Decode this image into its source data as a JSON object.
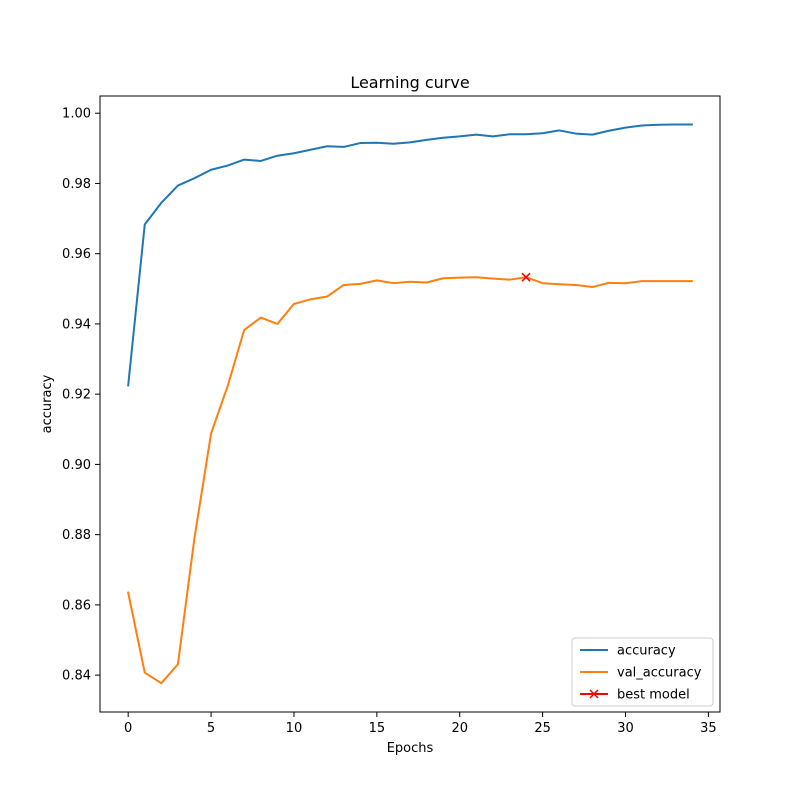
{
  "chart_data": {
    "type": "line",
    "title": "Learning curve",
    "xlabel": "Epochs",
    "ylabel": "accuracy",
    "xlim": [
      -1.7,
      35.7
    ],
    "ylim": [
      0.8295,
      1.0049
    ],
    "xticks": [
      0,
      5,
      10,
      15,
      20,
      25,
      30,
      35
    ],
    "yticks": [
      0.84,
      0.86,
      0.88,
      0.9,
      0.92,
      0.94,
      0.96,
      0.98,
      1.0
    ],
    "ytick_labels": [
      "0.84",
      "0.86",
      "0.88",
      "0.90",
      "0.92",
      "0.94",
      "0.96",
      "0.98",
      "1.00"
    ],
    "grid": false,
    "legend_position": "lower-right",
    "x": [
      0,
      1,
      2,
      3,
      4,
      5,
      6,
      7,
      8,
      9,
      10,
      11,
      12,
      13,
      14,
      15,
      16,
      17,
      18,
      19,
      20,
      21,
      22,
      23,
      24,
      25,
      26,
      27,
      28,
      29,
      30,
      31,
      32,
      33,
      34
    ],
    "series": [
      {
        "name": "accuracy",
        "color": "#1f77b4",
        "values": [
          0.9225,
          0.9683,
          0.9745,
          0.9794,
          0.9815,
          0.9839,
          0.9851,
          0.9868,
          0.9864,
          0.9879,
          0.9886,
          0.9896,
          0.9906,
          0.9904,
          0.9915,
          0.9916,
          0.9913,
          0.9917,
          0.9924,
          0.993,
          0.9934,
          0.9939,
          0.9934,
          0.994,
          0.994,
          0.9943,
          0.9951,
          0.9942,
          0.9939,
          0.995,
          0.9959,
          0.9965,
          0.9967,
          0.9968,
          0.9968
        ]
      },
      {
        "name": "val_accuracy",
        "color": "#ff7f0e",
        "values": [
          0.8635,
          0.8407,
          0.8377,
          0.8431,
          0.8791,
          0.9088,
          0.9223,
          0.9383,
          0.9418,
          0.94,
          0.9457,
          0.947,
          0.9478,
          0.9511,
          0.9514,
          0.9524,
          0.9516,
          0.952,
          0.9518,
          0.953,
          0.9532,
          0.9533,
          0.9529,
          0.9526,
          0.9533,
          0.9516,
          0.9513,
          0.9511,
          0.9505,
          0.9517,
          0.9516,
          0.9522,
          0.9522,
          0.9522,
          0.9522
        ]
      }
    ],
    "markers": [
      {
        "name": "best model",
        "color": "#ff0000",
        "symbol": "x",
        "x": 24,
        "y": 0.9533
      }
    ]
  }
}
